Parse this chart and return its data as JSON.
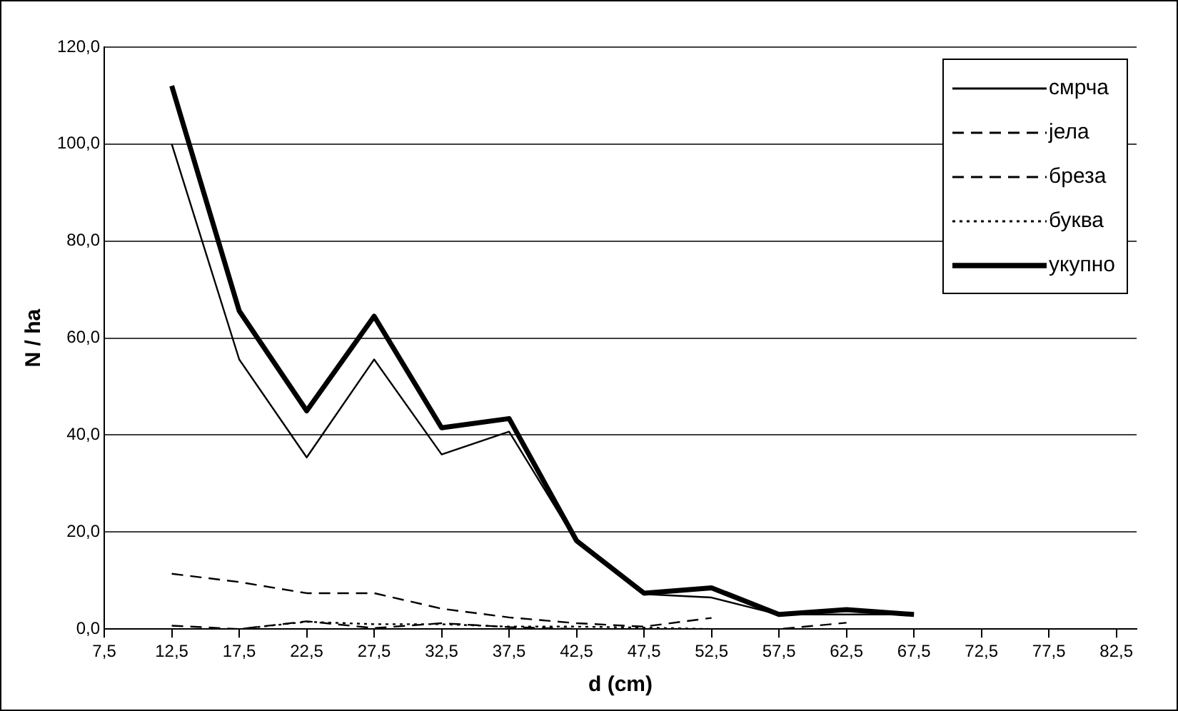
{
  "chart_data": {
    "type": "line",
    "xlabel": "d (cm)",
    "ylabel": "N / ha",
    "x": [
      12.5,
      17.5,
      22.5,
      27.5,
      32.5,
      37.5,
      42.5,
      47.5,
      52.5,
      57.5,
      62.5,
      67.5
    ],
    "series": [
      {
        "name": "смрча",
        "color": "#000000",
        "line_style": "solid",
        "values": [
          100,
          55.6,
          35.4,
          55.6,
          36,
          40.7,
          18,
          7.2,
          6.5,
          3,
          3,
          3
        ]
      },
      {
        "name": "јела",
        "color": "#000000",
        "line_style": "dashed",
        "values": [
          0.7,
          0,
          1.6,
          0.2,
          1.2,
          0.4,
          0,
          0,
          0,
          0,
          1.3,
          null
        ]
      },
      {
        "name": "бреза",
        "color": "#000000",
        "line_style": "dashed",
        "values": [
          11.4,
          9.7,
          7.4,
          7.4,
          4.2,
          2.4,
          1.2,
          0.5,
          2.3,
          null,
          null,
          null
        ]
      },
      {
        "name": "буква",
        "color": "#000000",
        "line_style": "dotted",
        "values": [
          0,
          0,
          1.5,
          1,
          1,
          0.5,
          0.5,
          0.3,
          0,
          null,
          null,
          null
        ]
      },
      {
        "name": "укупно",
        "color": "#000000",
        "line_style": "solid",
        "values": [
          112,
          65.6,
          45,
          64.5,
          41.5,
          43.4,
          18.2,
          7.4,
          8.5,
          3,
          4,
          3
        ]
      }
    ],
    "xlim": [
      7.5,
      84
    ],
    "xticks": [
      {
        "value": 7.5,
        "label": "7,5"
      },
      {
        "value": 12.5,
        "label": "12,5"
      },
      {
        "value": 17.5,
        "label": "17,5"
      },
      {
        "value": 22.5,
        "label": "22,5"
      },
      {
        "value": 27.5,
        "label": "27,5"
      },
      {
        "value": 32.5,
        "label": "32,5"
      },
      {
        "value": 37.5,
        "label": "37,5"
      },
      {
        "value": 42.5,
        "label": "42,5"
      },
      {
        "value": 47.5,
        "label": "47,5"
      },
      {
        "value": 52.5,
        "label": "52,5"
      },
      {
        "value": 57.5,
        "label": "57,5"
      },
      {
        "value": 62.5,
        "label": "62,5"
      },
      {
        "value": 67.5,
        "label": "67,5"
      },
      {
        "value": 72.5,
        "label": "72,5"
      },
      {
        "value": 77.5,
        "label": "77,5"
      },
      {
        "value": 82.5,
        "label": "82,5"
      }
    ],
    "ylim": [
      0,
      120
    ],
    "yticks": [
      {
        "value": 0,
        "label": "0,0"
      },
      {
        "value": 20,
        "label": "20,0"
      },
      {
        "value": 40,
        "label": "40,0"
      },
      {
        "value": 60,
        "label": "60,0"
      },
      {
        "value": 80,
        "label": "80,0"
      },
      {
        "value": 100,
        "label": "100,0"
      },
      {
        "value": 120,
        "label": "120,0"
      }
    ],
    "grid": "y",
    "legend": "top right",
    "marker": "none"
  }
}
